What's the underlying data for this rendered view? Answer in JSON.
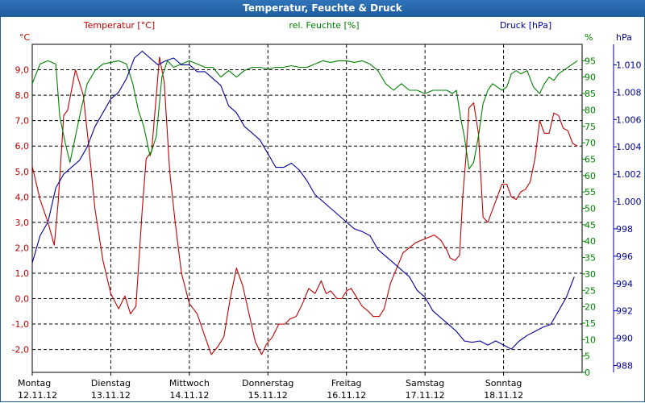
{
  "window": {
    "title": "Temperatur, Feuchte & Druck"
  },
  "colors": {
    "temp": "#c00000",
    "hum": "#008000",
    "press": "#000099",
    "grid": "#000000",
    "title_bg": "#1f5e9e"
  },
  "chart_data": {
    "type": "line",
    "title": "Temperatur, Feuchte & Druck",
    "axes": {
      "temp": {
        "label": "Temperatur [°C]",
        "unit": "°C",
        "min": -2.9,
        "max": 10.0,
        "ticks": [
          -2.0,
          -1.0,
          0.0,
          1.0,
          2.0,
          3.0,
          4.0,
          5.0,
          6.0,
          7.0,
          8.0,
          9.0
        ],
        "tick_labels": [
          "-2,0",
          "-1,0",
          "0,0",
          "1,0",
          "2,0",
          "3,0",
          "4,0",
          "5,0",
          "6,0",
          "7,0",
          "8,0",
          "9,0"
        ]
      },
      "hum": {
        "label": "rel. Feuchte [%]",
        "unit": "%",
        "min": 0,
        "max": 100,
        "ticks": [
          0,
          5,
          10,
          15,
          20,
          25,
          30,
          35,
          40,
          45,
          50,
          55,
          60,
          65,
          70,
          75,
          80,
          85,
          90,
          95
        ],
        "tick_labels": [
          "0",
          "5",
          "10",
          "15",
          "20",
          "25",
          "30",
          "35",
          "40",
          "45",
          "50",
          "55",
          "60",
          "65",
          "70",
          "75",
          "80",
          "85",
          "90",
          "95"
        ]
      },
      "press": {
        "label": "Druck [hPa]",
        "unit": "hPa",
        "min": 987.5,
        "max": 1011.5,
        "ticks": [
          988,
          990,
          992,
          994,
          996,
          998,
          1000,
          1002,
          1004,
          1006,
          1008,
          1010
        ],
        "tick_labels": [
          "988",
          "990",
          "992",
          "994",
          "996",
          "998",
          "1.000",
          "1.002",
          "1.004",
          "1.006",
          "1.008",
          "1.010"
        ]
      }
    },
    "x": {
      "min": 0,
      "max": 7.0,
      "days": [
        {
          "name": "Montag",
          "date": "12.11.12"
        },
        {
          "name": "Dienstag",
          "date": "13.11.12"
        },
        {
          "name": "Mittwoch",
          "date": "14.11.12"
        },
        {
          "name": "Donnerstag",
          "date": "15.11.12"
        },
        {
          "name": "Freitag",
          "date": "16.11.12"
        },
        {
          "name": "Samstag",
          "date": "17.11.12"
        },
        {
          "name": "Sonntag",
          "date": "18.11.12"
        }
      ]
    },
    "series": [
      {
        "name": "Temperatur [°C]",
        "axis": "temp",
        "points": [
          [
            0.0,
            5.2
          ],
          [
            0.1,
            3.9
          ],
          [
            0.2,
            3.0
          ],
          [
            0.28,
            2.1
          ],
          [
            0.33,
            3.8
          ],
          [
            0.4,
            7.2
          ],
          [
            0.45,
            7.4
          ],
          [
            0.55,
            9.0
          ],
          [
            0.65,
            8.0
          ],
          [
            0.72,
            6.0
          ],
          [
            0.8,
            3.5
          ],
          [
            0.9,
            1.5
          ],
          [
            1.0,
            0.2
          ],
          [
            1.1,
            -0.4
          ],
          [
            1.18,
            0.1
          ],
          [
            1.25,
            -0.6
          ],
          [
            1.32,
            -0.3
          ],
          [
            1.4,
            3.5
          ],
          [
            1.45,
            5.5
          ],
          [
            1.52,
            5.8
          ],
          [
            1.58,
            8.0
          ],
          [
            1.62,
            9.5
          ],
          [
            1.68,
            8.5
          ],
          [
            1.75,
            5.0
          ],
          [
            1.82,
            3.0
          ],
          [
            1.9,
            1.0
          ],
          [
            2.0,
            -0.2
          ],
          [
            2.1,
            -0.6
          ],
          [
            2.2,
            -1.5
          ],
          [
            2.28,
            -2.2
          ],
          [
            2.36,
            -1.9
          ],
          [
            2.44,
            -1.5
          ],
          [
            2.52,
            0.0
          ],
          [
            2.6,
            1.2
          ],
          [
            2.68,
            0.5
          ],
          [
            2.76,
            -0.6
          ],
          [
            2.84,
            -1.7
          ],
          [
            2.92,
            -2.2
          ],
          [
            2.98,
            -1.8
          ],
          [
            3.06,
            -1.5
          ],
          [
            3.14,
            -1.0
          ],
          [
            3.22,
            -1.0
          ],
          [
            3.28,
            -0.8
          ],
          [
            3.36,
            -0.7
          ],
          [
            3.44,
            -0.2
          ],
          [
            3.52,
            0.4
          ],
          [
            3.6,
            0.2
          ],
          [
            3.68,
            0.7
          ],
          [
            3.74,
            0.2
          ],
          [
            3.8,
            0.3
          ],
          [
            3.88,
            0.0
          ],
          [
            3.94,
            0.0
          ],
          [
            4.0,
            0.3
          ],
          [
            4.06,
            0.4
          ],
          [
            4.12,
            0.1
          ],
          [
            4.2,
            -0.3
          ],
          [
            4.28,
            -0.5
          ],
          [
            4.34,
            -0.7
          ],
          [
            4.42,
            -0.7
          ],
          [
            4.48,
            -0.4
          ],
          [
            4.56,
            0.6
          ],
          [
            4.64,
            1.2
          ],
          [
            4.72,
            1.8
          ],
          [
            4.8,
            2.0
          ],
          [
            4.88,
            2.2
          ],
          [
            4.96,
            2.3
          ],
          [
            5.04,
            2.4
          ],
          [
            5.12,
            2.5
          ],
          [
            5.2,
            2.3
          ],
          [
            5.28,
            1.9
          ],
          [
            5.32,
            1.6
          ],
          [
            5.38,
            1.5
          ],
          [
            5.44,
            1.7
          ],
          [
            5.48,
            4.0
          ],
          [
            5.52,
            5.5
          ],
          [
            5.56,
            7.5
          ],
          [
            5.62,
            7.7
          ],
          [
            5.68,
            6.5
          ],
          [
            5.74,
            3.2
          ],
          [
            5.8,
            3.0
          ],
          [
            5.86,
            3.5
          ],
          [
            5.92,
            4.0
          ],
          [
            5.98,
            4.5
          ],
          [
            6.04,
            4.5
          ],
          [
            6.1,
            4.0
          ],
          [
            6.16,
            3.9
          ],
          [
            6.22,
            4.2
          ],
          [
            6.28,
            4.3
          ],
          [
            6.34,
            4.6
          ],
          [
            6.4,
            5.5
          ],
          [
            6.46,
            7.0
          ],
          [
            6.52,
            6.5
          ],
          [
            6.58,
            6.5
          ],
          [
            6.64,
            7.3
          ],
          [
            6.7,
            7.2
          ],
          [
            6.76,
            6.7
          ],
          [
            6.82,
            6.6
          ],
          [
            6.88,
            6.1
          ],
          [
            6.94,
            6.0
          ]
        ]
      },
      {
        "name": "rel. Feuchte [%]",
        "axis": "hum",
        "points": [
          [
            0.0,
            88
          ],
          [
            0.1,
            94
          ],
          [
            0.2,
            95
          ],
          [
            0.3,
            94
          ],
          [
            0.35,
            78
          ],
          [
            0.42,
            70
          ],
          [
            0.48,
            64
          ],
          [
            0.55,
            72
          ],
          [
            0.62,
            80
          ],
          [
            0.7,
            88
          ],
          [
            0.8,
            92
          ],
          [
            0.9,
            94
          ],
          [
            1.0,
            94.5
          ],
          [
            1.1,
            95
          ],
          [
            1.2,
            94
          ],
          [
            1.28,
            88
          ],
          [
            1.35,
            80
          ],
          [
            1.42,
            75
          ],
          [
            1.5,
            66
          ],
          [
            1.58,
            72
          ],
          [
            1.65,
            90
          ],
          [
            1.72,
            95
          ],
          [
            1.8,
            93
          ],
          [
            1.9,
            94
          ],
          [
            2.0,
            95
          ],
          [
            2.1,
            94
          ],
          [
            2.2,
            93
          ],
          [
            2.3,
            93
          ],
          [
            2.4,
            90
          ],
          [
            2.5,
            92
          ],
          [
            2.6,
            90
          ],
          [
            2.7,
            92
          ],
          [
            2.8,
            93
          ],
          [
            2.9,
            93
          ],
          [
            3.0,
            92.5
          ],
          [
            3.1,
            93
          ],
          [
            3.2,
            93
          ],
          [
            3.3,
            93.5
          ],
          [
            3.4,
            93
          ],
          [
            3.5,
            93
          ],
          [
            3.6,
            94
          ],
          [
            3.7,
            95
          ],
          [
            3.8,
            94.5
          ],
          [
            3.9,
            95
          ],
          [
            4.0,
            95
          ],
          [
            4.1,
            94.5
          ],
          [
            4.2,
            95
          ],
          [
            4.3,
            94
          ],
          [
            4.4,
            92
          ],
          [
            4.5,
            88
          ],
          [
            4.6,
            86
          ],
          [
            4.7,
            88
          ],
          [
            4.8,
            86
          ],
          [
            4.9,
            86
          ],
          [
            5.0,
            85
          ],
          [
            5.1,
            86
          ],
          [
            5.2,
            86
          ],
          [
            5.28,
            86
          ],
          [
            5.35,
            85
          ],
          [
            5.4,
            86
          ],
          [
            5.45,
            78
          ],
          [
            5.5,
            72
          ],
          [
            5.56,
            62
          ],
          [
            5.62,
            64
          ],
          [
            5.68,
            72
          ],
          [
            5.74,
            82
          ],
          [
            5.8,
            86
          ],
          [
            5.86,
            88
          ],
          [
            5.92,
            87
          ],
          [
            5.98,
            86
          ],
          [
            6.04,
            87
          ],
          [
            6.1,
            91
          ],
          [
            6.16,
            92
          ],
          [
            6.22,
            91
          ],
          [
            6.3,
            92
          ],
          [
            6.38,
            87
          ],
          [
            6.46,
            85
          ],
          [
            6.52,
            88
          ],
          [
            6.58,
            90
          ],
          [
            6.64,
            89
          ],
          [
            6.7,
            91
          ],
          [
            6.76,
            92
          ],
          [
            6.82,
            93
          ],
          [
            6.88,
            94
          ],
          [
            6.94,
            95
          ]
        ]
      },
      {
        "name": "Druck [hPa]",
        "axis": "press",
        "points": [
          [
            0.0,
            995.5
          ],
          [
            0.1,
            997.5
          ],
          [
            0.2,
            998.5
          ],
          [
            0.3,
            1001.0
          ],
          [
            0.4,
            1002.0
          ],
          [
            0.5,
            1002.5
          ],
          [
            0.6,
            1003.0
          ],
          [
            0.7,
            1004.0
          ],
          [
            0.8,
            1005.5
          ],
          [
            0.9,
            1006.5
          ],
          [
            1.0,
            1007.5
          ],
          [
            1.1,
            1008.0
          ],
          [
            1.2,
            1009.0
          ],
          [
            1.3,
            1010.5
          ],
          [
            1.4,
            1011.0
          ],
          [
            1.5,
            1010.5
          ],
          [
            1.6,
            1010.0
          ],
          [
            1.7,
            1010.3
          ],
          [
            1.8,
            1010.5
          ],
          [
            1.9,
            1010.0
          ],
          [
            2.0,
            1010.0
          ],
          [
            2.1,
            1009.5
          ],
          [
            2.2,
            1009.5
          ],
          [
            2.3,
            1009.0
          ],
          [
            2.4,
            1008.5
          ],
          [
            2.5,
            1007.0
          ],
          [
            2.6,
            1006.5
          ],
          [
            2.7,
            1005.5
          ],
          [
            2.8,
            1005.0
          ],
          [
            2.9,
            1004.5
          ],
          [
            3.0,
            1003.5
          ],
          [
            3.1,
            1002.5
          ],
          [
            3.2,
            1002.5
          ],
          [
            3.3,
            1002.8
          ],
          [
            3.4,
            1002.3
          ],
          [
            3.5,
            1001.5
          ],
          [
            3.6,
            1000.5
          ],
          [
            3.7,
            1000.0
          ],
          [
            3.8,
            999.5
          ],
          [
            3.9,
            999.0
          ],
          [
            4.0,
            998.5
          ],
          [
            4.1,
            998.0
          ],
          [
            4.2,
            997.8
          ],
          [
            4.3,
            997.5
          ],
          [
            4.4,
            996.5
          ],
          [
            4.5,
            996.0
          ],
          [
            4.6,
            995.5
          ],
          [
            4.7,
            995.0
          ],
          [
            4.8,
            994.5
          ],
          [
            4.9,
            993.5
          ],
          [
            5.0,
            993.0
          ],
          [
            5.1,
            992.0
          ],
          [
            5.2,
            991.5
          ],
          [
            5.3,
            991.0
          ],
          [
            5.4,
            990.5
          ],
          [
            5.5,
            989.8
          ],
          [
            5.6,
            989.7
          ],
          [
            5.7,
            989.8
          ],
          [
            5.8,
            989.5
          ],
          [
            5.9,
            989.8
          ],
          [
            6.0,
            989.5
          ],
          [
            6.1,
            989.2
          ],
          [
            6.2,
            989.8
          ],
          [
            6.3,
            990.2
          ],
          [
            6.4,
            990.5
          ],
          [
            6.5,
            990.8
          ],
          [
            6.6,
            991.0
          ],
          [
            6.7,
            992.0
          ],
          [
            6.8,
            993.0
          ],
          [
            6.9,
            994.5
          ]
        ]
      }
    ]
  }
}
